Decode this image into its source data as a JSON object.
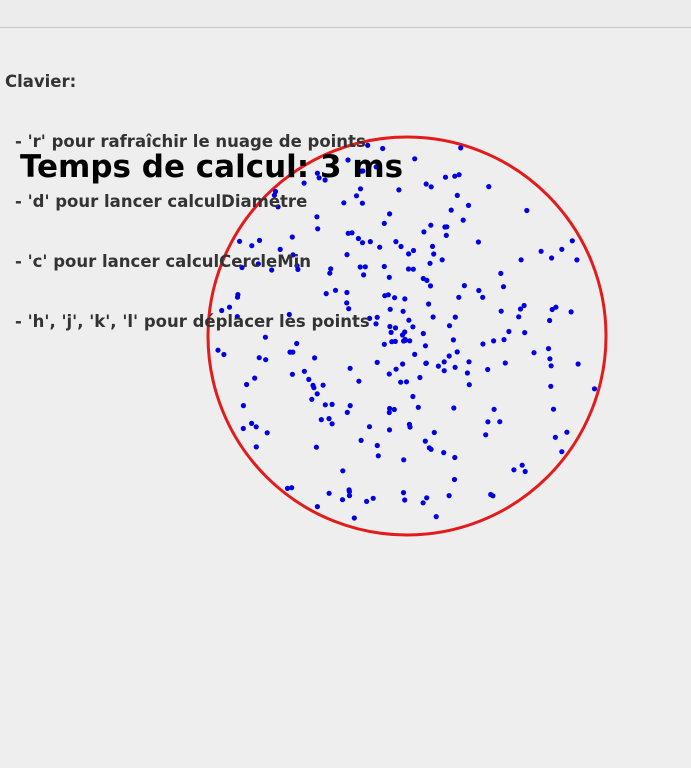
{
  "help": {
    "heading": "Clavier:",
    "lines": [
      "- 'r' pour rafraîchir le nuage de points",
      "- 'd' pour lancer calculDiametre",
      "- 'c' pour lancer calculCercleMin",
      "- 'h', 'j', 'k', 'l' pour déplacer les points"
    ]
  },
  "timing": {
    "label": "Temps de calcul:",
    "value": "3",
    "unit": "ms"
  },
  "colors": {
    "background": "#eeeeee",
    "help_text": "#333333",
    "timing_text": "#000000",
    "circle": "#e31b1b",
    "points": "#0000e6"
  }
}
